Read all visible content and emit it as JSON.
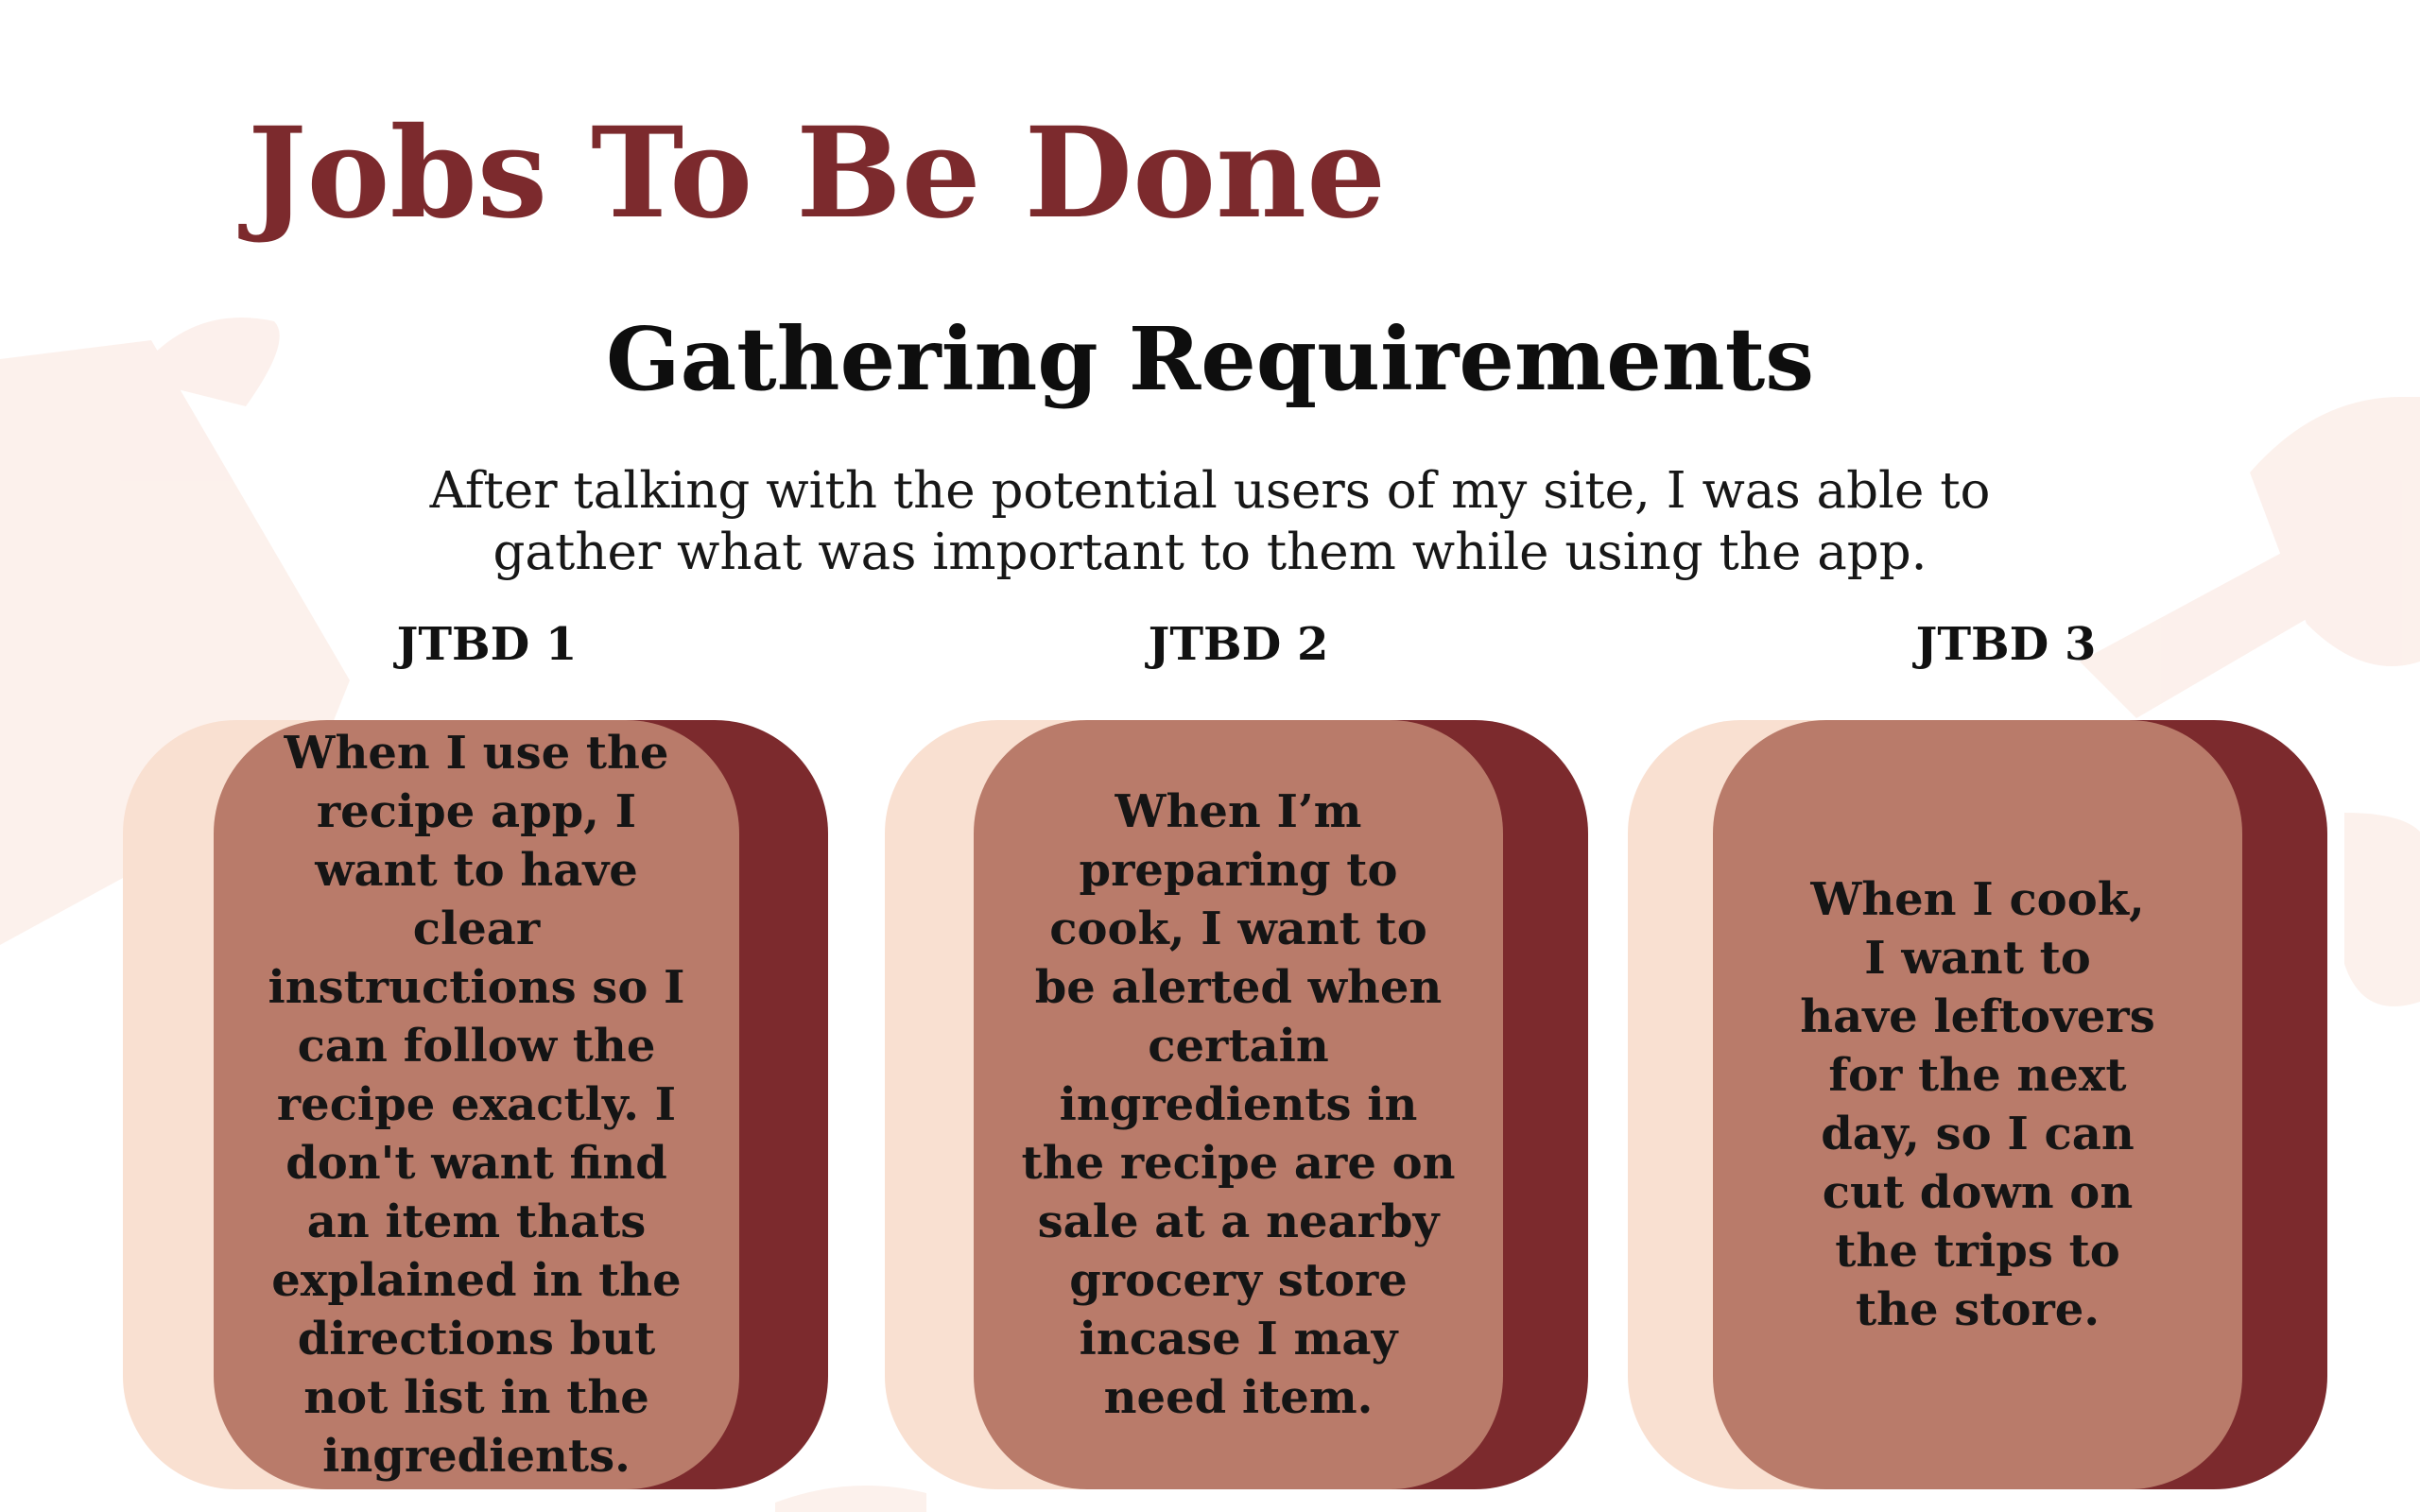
{
  "page": {
    "title": "Jobs To Be Done",
    "subtitle": "Gathering Requirements",
    "intro": "After talking with the potential users of my site, I was able to gather what was important to them while using the app."
  },
  "jtbd": [
    {
      "label": "JTBD 1",
      "text": "When I use the recipe app, I want to have clear instructions so I can follow the recipe exactly. I don't want find an item thats explained in the directions but not list in the ingredients."
    },
    {
      "label": "JTBD 2",
      "text": "When I’m preparing to cook, I want to be alerted when certain ingredients in the recipe are on sale at a nearby grocery store incase I may need item."
    },
    {
      "label": "JTBD 3",
      "text": "When I cook, I want to have leftovers for the next day, so I can cut down on the trips to the store."
    }
  ],
  "colors": {
    "title": "#7c2a2d",
    "card_front": "#b97b6a",
    "card_back": "#7c2a2d",
    "card_peach": "#f9e0d1"
  }
}
